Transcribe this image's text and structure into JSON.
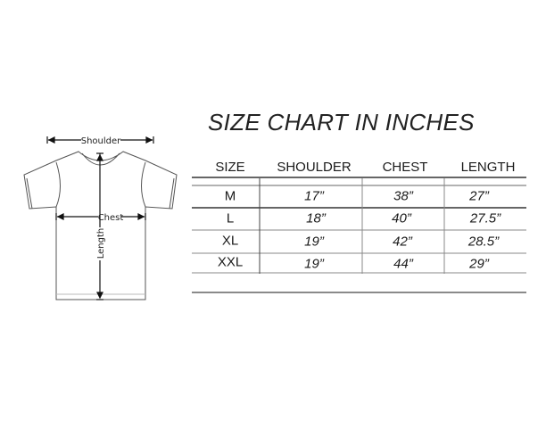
{
  "title": "SIZE CHART IN INCHES",
  "diagram": {
    "shoulder_label": "Shoulder",
    "chest_label": "Chest",
    "length_label": "Length"
  },
  "table": {
    "headers": [
      "SIZE",
      "SHOULDER",
      "CHEST",
      "LENGTH"
    ],
    "rows": [
      {
        "size": "M",
        "shoulder": "17”",
        "chest": "38”",
        "length": "27”"
      },
      {
        "size": "L",
        "shoulder": "18”",
        "chest": "40”",
        "length": "27.5”"
      },
      {
        "size": "XL",
        "shoulder": "19”",
        "chest": "42”",
        "length": "28.5”"
      },
      {
        "size": "XXL",
        "shoulder": "19”",
        "chest": "44”",
        "length": "29”"
      }
    ]
  }
}
